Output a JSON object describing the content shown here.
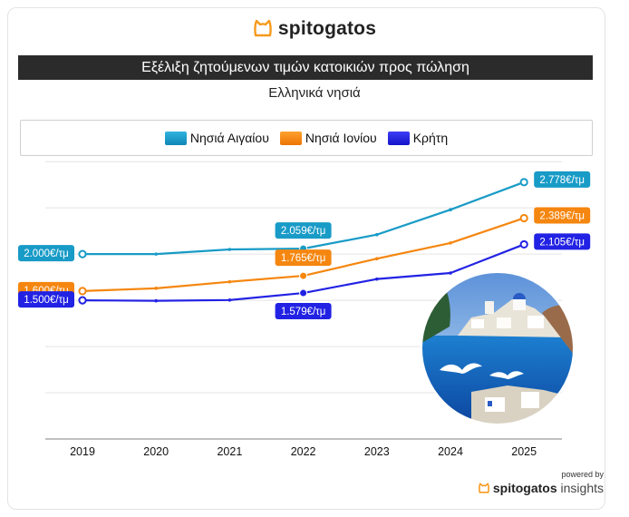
{
  "brand": {
    "name": "spitogatos"
  },
  "title": "Εξέλιξη ζητούμενων τιμών κατοικιών προς πώληση",
  "subtitle": "Ελληνικά νησιά",
  "footer": {
    "powered_by": "powered by",
    "logo_main": "spitogatos",
    "logo_suffix": " insights"
  },
  "colors": {
    "aegean": "#189bc7",
    "ionian": "#f5860f",
    "crete": "#2222e4",
    "brand_orange": "#f79a1d"
  },
  "illustration_icon": "greek-island-seagulls-illustration",
  "chart_data": {
    "type": "line",
    "x": [
      "2019",
      "2020",
      "2021",
      "2022",
      "2023",
      "2024",
      "2025"
    ],
    "ylim": [
      0,
      3100
    ],
    "grid": true,
    "legend_position": "top",
    "series": [
      {
        "name": "Νησιά Αιγαίου",
        "color": "#189bc7",
        "values": [
          2000,
          2000,
          2050,
          2059,
          2210,
          2480,
          2778
        ],
        "labels": [
          {
            "index": 0,
            "text": "2.000€/τμ"
          },
          {
            "index": 3,
            "text": "2.059€/τμ"
          },
          {
            "index": 6,
            "text": "2.778€/τμ"
          }
        ]
      },
      {
        "name": "Νησιά Ιονίου",
        "color": "#f5860f",
        "values": [
          1600,
          1630,
          1700,
          1765,
          1950,
          2120,
          2389
        ],
        "labels": [
          {
            "index": 0,
            "text": "1.600€/τμ"
          },
          {
            "index": 3,
            "text": "1.765€/τμ"
          },
          {
            "index": 6,
            "text": "2.389€/τμ"
          }
        ]
      },
      {
        "name": "Κρήτη",
        "color": "#2222e4",
        "values": [
          1500,
          1495,
          1503,
          1579,
          1730,
          1795,
          2105
        ],
        "labels": [
          {
            "index": 0,
            "text": "1.500€/τμ"
          },
          {
            "index": 3,
            "text": "1.579€/τμ"
          },
          {
            "index": 6,
            "text": "2.105€/τμ"
          }
        ]
      }
    ]
  }
}
